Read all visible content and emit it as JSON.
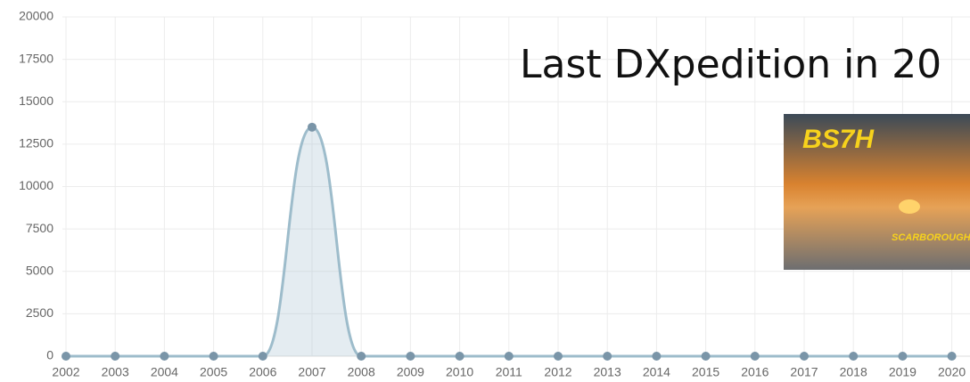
{
  "chart_data": {
    "type": "line",
    "title": "Last DXpedition in 20",
    "image_texts": [
      "BS7H",
      "SCARBOROUGH"
    ],
    "categories": [
      "2002",
      "2003",
      "2004",
      "2005",
      "2006",
      "2007",
      "2008",
      "2009",
      "2010",
      "2011",
      "2012",
      "2013",
      "2014",
      "2015",
      "2016",
      "2017",
      "2018",
      "2019",
      "2020"
    ],
    "series": [
      {
        "color": "#9dbccb",
        "values": [
          0,
          0,
          0,
          0,
          0,
          13500,
          0,
          0,
          0,
          0,
          0,
          0,
          0,
          0,
          0,
          0,
          0,
          0,
          0
        ]
      }
    ],
    "ylim": [
      0,
      20000
    ],
    "yticks": [
      0,
      2500,
      5000,
      7500,
      10000,
      12500,
      15000,
      17500,
      20000
    ],
    "grid": true
  }
}
